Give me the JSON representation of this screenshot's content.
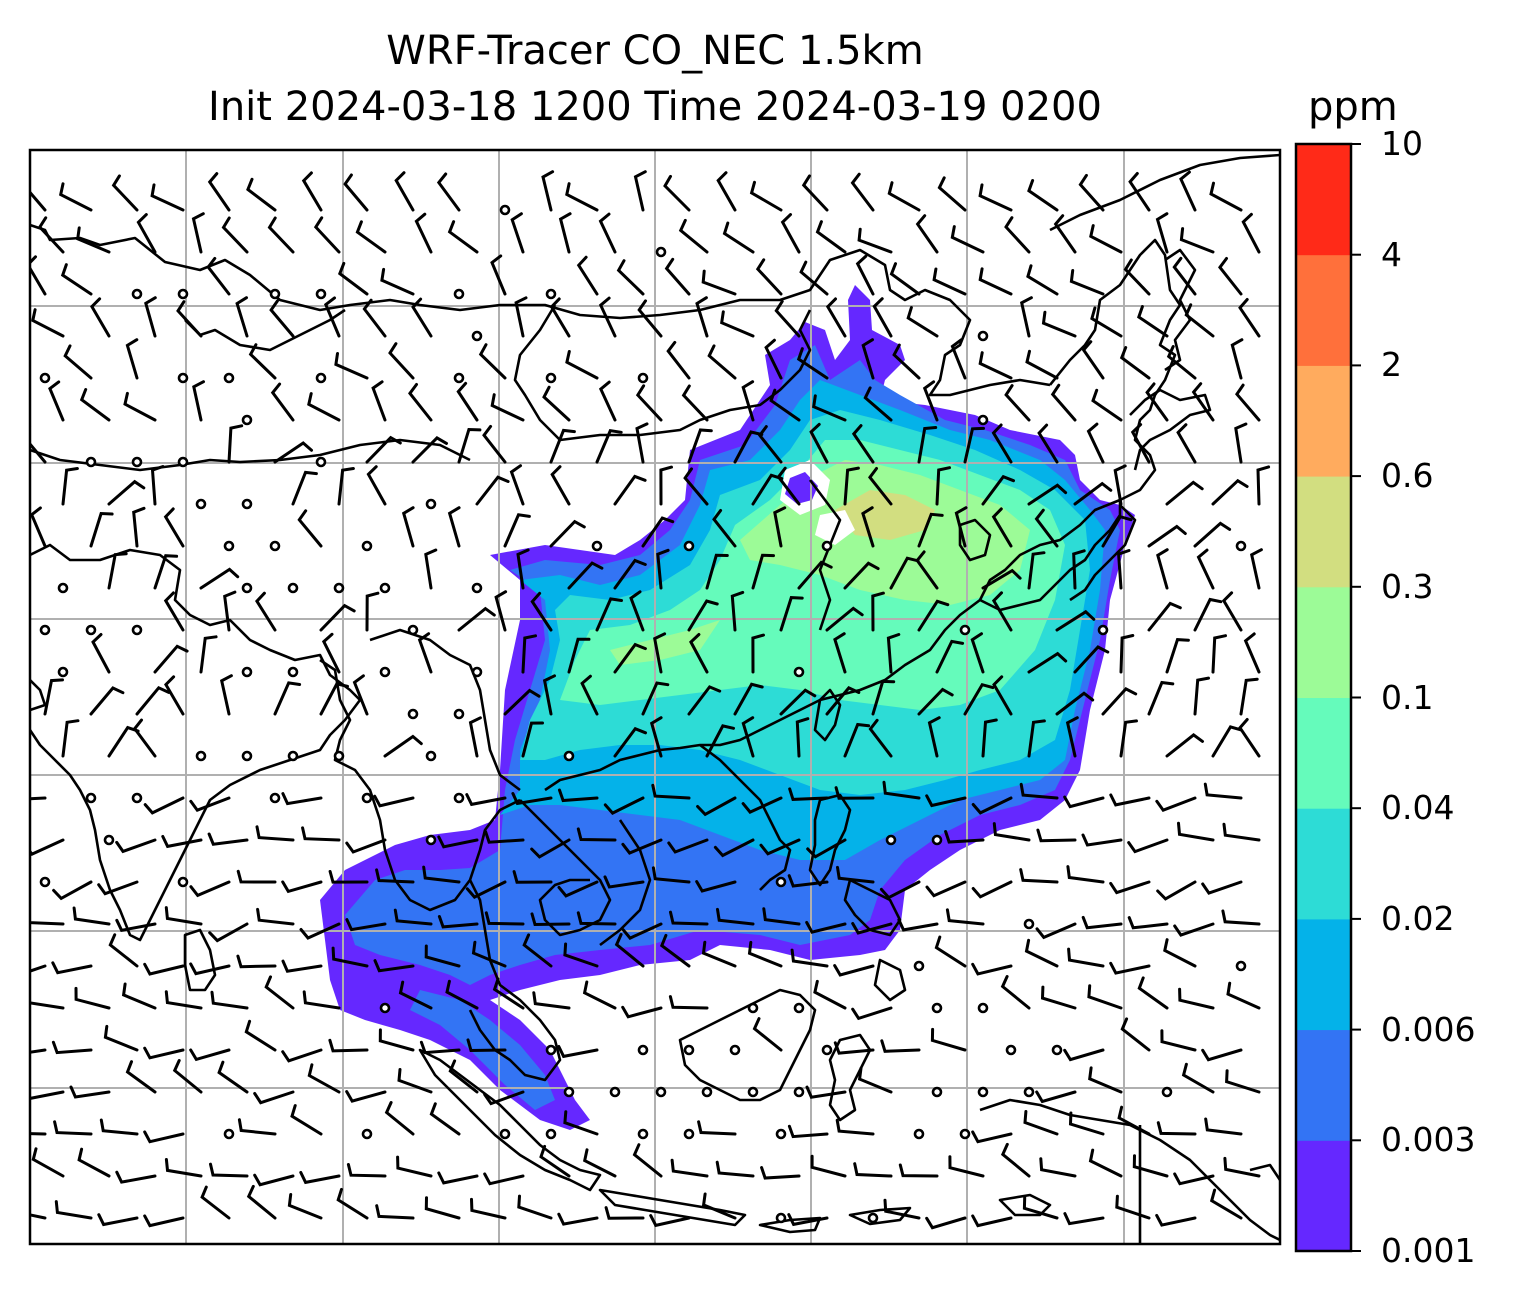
{
  "title": {
    "line1": "WRF-Tracer CO_NEC 1.5km",
    "line2": "Init 2024-03-18 1200 Time 2024-03-19 0200"
  },
  "colorbar": {
    "unit": "ppm",
    "levels": [
      "0.001",
      "0.003",
      "0.006",
      "0.02",
      "0.04",
      "0.1",
      "0.3",
      "0.6",
      "2",
      "4",
      "10"
    ],
    "colors": [
      "#6528ff",
      "#3374f4",
      "#04b2e9",
      "#2ddcd6",
      "#65fbbb",
      "#9cfb97",
      "#d2de80",
      "#ffab5e",
      "#ff703b",
      "#ff2a18"
    ]
  },
  "map": {
    "gridlines": true,
    "coastline_color": "#000000",
    "grid_color": "#b0b0b0",
    "wind_barb_color": "#000000"
  }
}
